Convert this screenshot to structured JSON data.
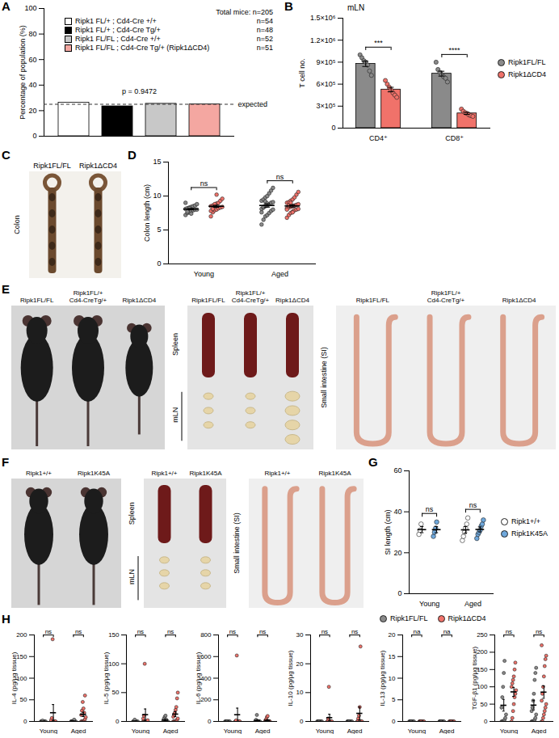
{
  "chart_data": [
    {
      "panel": "A",
      "type": "bar",
      "categories": [
        "Ripk1 FL/+ ; Cd4-Cre +/+",
        "Ripk1 FL/+ ; Cd4-Cre Tg/+",
        "Ripk1 FL/FL ; Cd4-Cre +/+",
        "Ripk1 FL/FL ; Cd4-Cre Tg/+ (Ripk1ΔCD4)"
      ],
      "values": [
        26.3,
        23.4,
        25.4,
        24.9
      ],
      "colors": [
        "#ffffff",
        "#000000",
        "#c8c8c8",
        "#f4a7a1"
      ],
      "legend_title": "Total mice: n=205",
      "legend_notes": [
        "n=54",
        "n=48",
        "n=52",
        "n=51"
      ],
      "ylabel": "Percentage of population (%)",
      "ylim": [
        0,
        100
      ],
      "yticks": [
        0,
        20,
        40,
        60,
        80,
        100
      ],
      "annotations": [
        "p = 0.9472"
      ],
      "reference_line": {
        "value": 25,
        "label": "expected"
      },
      "legend": "top",
      "tick_labels": "y"
    },
    {
      "panel": "B",
      "type": "bar",
      "title": "mLN",
      "categories": [
        "CD4⁺",
        "CD8⁺"
      ],
      "ylabel": "T cell no.",
      "ylim": [
        0,
        1500000
      ],
      "yticks": [
        0,
        {
          "value": 300000,
          "label": "3×10⁵"
        },
        {
          "value": 600000,
          "label": "6×10⁵"
        },
        {
          "value": 900000,
          "label": "9×10⁵"
        },
        {
          "value": 1200000,
          "label": "1.2×10⁶"
        },
        {
          "value": 1500000,
          "label": "1.5×10⁶"
        }
      ],
      "annotations": [
        "***",
        "****"
      ],
      "legend": "right",
      "series": [
        {
          "name": "Ripk1FL/FL",
          "color": "#8a8a8a",
          "values": [
            877000,
            743000
          ],
          "errors": [
            36000,
            33000
          ],
          "points": [
            [
              1000000,
              960000,
              920000,
              900000,
              860000,
              780000,
              720000
            ],
            [
              900000,
              800000,
              760000,
              730000,
              700000,
              680000,
              630000
            ]
          ]
        },
        {
          "name": "Ripk1ΔCD4",
          "color": "#f0726a",
          "values": [
            526000,
            201000
          ],
          "errors": [
            31000,
            13000
          ],
          "points": [
            [
              650000,
              600000,
              560000,
              520000,
              480000,
              450000,
              420000
            ],
            [
              260000,
              230000,
              210000,
              200000,
              180000,
              170000,
              160000
            ]
          ]
        }
      ]
    },
    {
      "panel": "D",
      "type": "scatter",
      "categories": [
        "Young",
        "Aged"
      ],
      "ylabel": "Colon length (cm)",
      "ylim": [
        0,
        15
      ],
      "yticks": [
        0,
        5,
        10,
        15
      ],
      "annotations": [
        "ns",
        "ns"
      ],
      "series": [
        {
          "color": "#8a8a8a",
          "values": [
            8.07,
            8.61
          ],
          "errors": [
            0.1,
            0.25
          ],
          "points": [
            [
              7.2,
              7.5,
              7.6,
              7.8,
              7.9,
              8.0,
              8.0,
              8.1,
              8.2,
              8.3,
              8.4,
              8.5,
              8.6,
              8.8,
              9.0,
              7.7,
              8.2,
              7.4
            ],
            [
              5.8,
              6.5,
              7.0,
              7.2,
              7.5,
              7.8,
              8.0,
              8.1,
              8.3,
              8.5,
              8.6,
              8.8,
              9.0,
              9.1,
              9.3,
              9.5,
              9.8,
              10.0,
              10.4,
              10.8,
              11.2,
              7.6,
              8.4,
              9.2,
              8.9
            ]
          ]
        },
        {
          "color": "#f0726a",
          "values": [
            8.49,
            8.54
          ],
          "errors": [
            0.16,
            0.18
          ],
          "points": [
            [
              7.0,
              7.6,
              7.9,
              8.0,
              8.2,
              8.3,
              8.4,
              8.5,
              8.6,
              8.7,
              8.9,
              9.0,
              9.3,
              9.6,
              7.8,
              8.1,
              8.8,
              10.2
            ],
            [
              6.8,
              7.2,
              7.5,
              7.7,
              7.9,
              8.0,
              8.1,
              8.2,
              8.3,
              8.4,
              8.5,
              8.6,
              8.7,
              8.8,
              9.0,
              9.1,
              9.3,
              9.5,
              9.8,
              10.2,
              10.6,
              8.0,
              8.6,
              9.0,
              7.6
            ]
          ]
        }
      ]
    },
    {
      "panel": "G",
      "type": "scatter",
      "categories": [
        "Young",
        "Aged"
      ],
      "ylabel": "SI length (cm)",
      "ylim": [
        0,
        60
      ],
      "yticks": [
        0,
        20,
        40,
        60
      ],
      "annotations": [
        "ns",
        "ns"
      ],
      "legend": "right",
      "series": [
        {
          "name": "Ripk1+/+",
          "color": "#ffffff",
          "values": [
            31.3,
            31.2
          ],
          "errors": [
            1.5,
            1.6
          ],
          "points": [
            [
              29,
              31,
              34
            ],
            [
              26,
              28,
              30,
              32,
              34,
              37
            ]
          ]
        },
        {
          "name": "Ripk1K45A",
          "color": "#6fa8dc",
          "values": [
            31.3,
            31.4
          ],
          "errors": [
            1.5,
            1.2
          ],
          "points": [
            [
              28,
              30,
              32,
              35
            ],
            [
              27,
              29,
              30,
              31,
              33,
              34,
              36
            ]
          ]
        }
      ]
    },
    {
      "panel": "H",
      "type": "scatter",
      "categories": [
        "Young",
        "Aged"
      ],
      "legend": "top-right",
      "series": [
        {
          "name": "Ripk1FL/FL",
          "color": "#8a8a8a"
        },
        {
          "name": "Ripk1ΔCD4",
          "color": "#f0726a"
        }
      ],
      "subplots": [
        {
          "ylabel": "IL-4 (pg/μg tissue)",
          "ylim": [
            0,
            200
          ],
          "yticks": [
            0,
            50,
            100,
            150,
            200
          ],
          "annotations": [
            "ns",
            "ns"
          ],
          "series": [
            {
              "values": [
                0.2,
                0.5
              ],
              "errors": [
                0.2,
                0.4
              ],
              "points": [
                [
                  0,
                  0,
                  0,
                  0,
                  0,
                  0,
                  0,
                  0,
                  0,
                  2
                ],
                [
                  0,
                  0,
                  0,
                  0,
                  0,
                  0,
                  0,
                  0,
                  0,
                  0,
                  2,
                  4
                ]
              ]
            },
            {
              "values": [
                20.1,
                16.2
              ],
              "errors": [
                18.9,
                5
              ],
              "points": [
                [
                  0,
                  0,
                  0,
                  0,
                  0,
                  0,
                  0,
                  3,
                  8,
                  190
                ],
                [
                  0,
                  0,
                  0,
                  0,
                  0,
                  5,
                  10,
                  15,
                  25,
                  45,
                  30,
                  20,
                  60
                ]
              ]
            }
          ]
        },
        {
          "ylabel": "IL-5 (pg/μg tissue)",
          "ylim": [
            0,
            150
          ],
          "yticks": [
            0,
            50,
            100,
            150
          ],
          "annotations": [
            "ns",
            "ns"
          ],
          "series": [
            {
              "values": [
                0.3,
                2.3
              ],
              "errors": [
                0.3,
                1
              ],
              "points": [
                [
                  0,
                  0,
                  0,
                  0,
                  0,
                  0,
                  0,
                  0,
                  0,
                  3
                ],
                [
                  0,
                  0,
                  0,
                  0,
                  0,
                  0,
                  0,
                  2,
                  5,
                  8,
                  10,
                  3
                ]
              ]
            },
            {
              "values": [
                11.7,
                12.7
              ],
              "errors": [
                9.9,
                4.3
              ],
              "points": [
                [
                  0,
                  0,
                  0,
                  0,
                  0,
                  0,
                  2,
                  5,
                  10,
                  100
                ],
                [
                  0,
                  0,
                  0,
                  0,
                  0,
                  3,
                  5,
                  8,
                  12,
                  15,
                  20,
                  25,
                  40,
                  50
                ]
              ]
            }
          ]
        },
        {
          "ylabel": "IL-6 (pg/μg tissue)",
          "ylim": [
            0,
            800
          ],
          "yticks": [
            0,
            200,
            400,
            600,
            800
          ],
          "annotations": [
            "ns",
            "ns"
          ],
          "series": [
            {
              "values": [
                0,
                8
              ],
              "errors": [
                0,
                6
              ],
              "points": [
                [
                  0,
                  0,
                  0,
                  0,
                  0,
                  0,
                  0,
                  0,
                  0,
                  0
                ],
                [
                  0,
                  0,
                  0,
                  0,
                  0,
                  0,
                  0,
                  5,
                  15,
                  60
                ]
              ]
            },
            {
              "values": [
                62,
                10.9
              ],
              "errors": [
                61,
                5.2
              ],
              "points": [
                [
                  0,
                  0,
                  0,
                  0,
                  0,
                  0,
                  0,
                  0,
                  10,
                  610
                ],
                [
                  0,
                  0,
                  0,
                  0,
                  0,
                  0,
                  0,
                  10,
                  20,
                  40,
                  50
                ]
              ]
            }
          ]
        },
        {
          "ylabel": "IL-10 (pg/μg tissue)",
          "ylim": [
            0,
            30
          ],
          "yticks": [
            0,
            10,
            20,
            30
          ],
          "annotations": [
            "ns",
            "ns"
          ],
          "series": [
            {
              "values": [
                0,
                0
              ],
              "errors": [
                0,
                0
              ],
              "points": [
                [
                  0,
                  0,
                  0,
                  0,
                  0,
                  0,
                  0,
                  0,
                  0,
                  0
                ],
                [
                  0,
                  0,
                  0,
                  0,
                  0,
                  0,
                  0,
                  0,
                  0,
                  0
                ]
              ]
            },
            {
              "values": [
                1.3,
                2.8
              ],
              "errors": [
                1.2,
                2.2
              ],
              "points": [
                [
                  0,
                  0,
                  0,
                  0,
                  0,
                  0,
                  0,
                  0,
                  1,
                  12
                ],
                [
                  0,
                  0,
                  0,
                  0,
                  0,
                  0,
                  0,
                  0,
                  1,
                  2,
                  5,
                  26
                ]
              ]
            }
          ]
        },
        {
          "ylabel": "IL-13 (pg/μg tissue)",
          "ylim": [
            0,
            20
          ],
          "yticks": [
            0,
            5,
            10,
            15,
            20
          ],
          "annotations": [
            "na",
            "na"
          ],
          "series": [
            {
              "values": [
                0,
                0
              ],
              "errors": [
                0,
                0
              ],
              "points": [
                [
                  0,
                  0,
                  0,
                  0,
                  0,
                  0,
                  0,
                  0,
                  0,
                  0
                ],
                [
                  0,
                  0,
                  0,
                  0,
                  0,
                  0,
                  0,
                  0,
                  0,
                  0
                ]
              ]
            },
            {
              "values": [
                0,
                0
              ],
              "errors": [
                0,
                0
              ],
              "points": [
                [
                  0,
                  0,
                  0,
                  0,
                  0,
                  0,
                  0,
                  0,
                  0,
                  0
                ],
                [
                  0,
                  0,
                  0,
                  0,
                  0,
                  0,
                  0,
                  0,
                  0,
                  0
                ]
              ]
            }
          ]
        },
        {
          "ylabel": "TGF-β1 (pg/μg tissue)",
          "ylim": [
            0,
            250
          ],
          "yticks": [
            0,
            50,
            100,
            150,
            200,
            250
          ],
          "annotations": [
            "ns",
            "ns"
          ],
          "series": [
            {
              "values": [
                46.7,
                47.1
              ],
              "errors": [
                17,
                14
              ],
              "points": [
                [
                  0,
                  0,
                  0,
                  0,
                  5,
                  10,
                  20,
                  40,
                  70,
                  100,
                  140,
                  175
                ],
                [
                  0,
                  0,
                  0,
                  0,
                  5,
                  10,
                  20,
                  30,
                  40,
                  60,
                  80,
                  120,
                  140,
                  155
                ]
              ]
            },
            {
              "values": [
                85.4,
                84.7
              ],
              "errors": [
                13,
                18
              ],
              "points": [
                [
                  0,
                  10,
                  30,
                  50,
                  70,
                  80,
                  90,
                  100,
                  110,
                  120,
                  130,
                  150,
                  170
                ],
                [
                  0,
                  0,
                  10,
                  20,
                  30,
                  40,
                  50,
                  60,
                  80,
                  100,
                  130,
                  160,
                  180,
                  190,
                  220
                ]
              ]
            }
          ]
        }
      ]
    }
  ],
  "photos": [
    {
      "panel": "C",
      "labels": [
        "Ripk1FL/FL",
        "Ripk1ΔCD4"
      ],
      "organ": "Colon"
    },
    {
      "panel": "E",
      "labels": [
        "Ripk1FL/FL",
        "Ripk1FL/+ Cd4-CreTg/+",
        "Ripk1ΔCD4"
      ],
      "organs": [
        "Spleen",
        "mLN",
        "Small intestine (SI)"
      ]
    },
    {
      "panel": "F",
      "labels": [
        "Ripk1+/+",
        "Ripk1K45A"
      ],
      "organs": [
        "Spleen",
        "mLN",
        "Small intestine (SI)"
      ]
    }
  ]
}
